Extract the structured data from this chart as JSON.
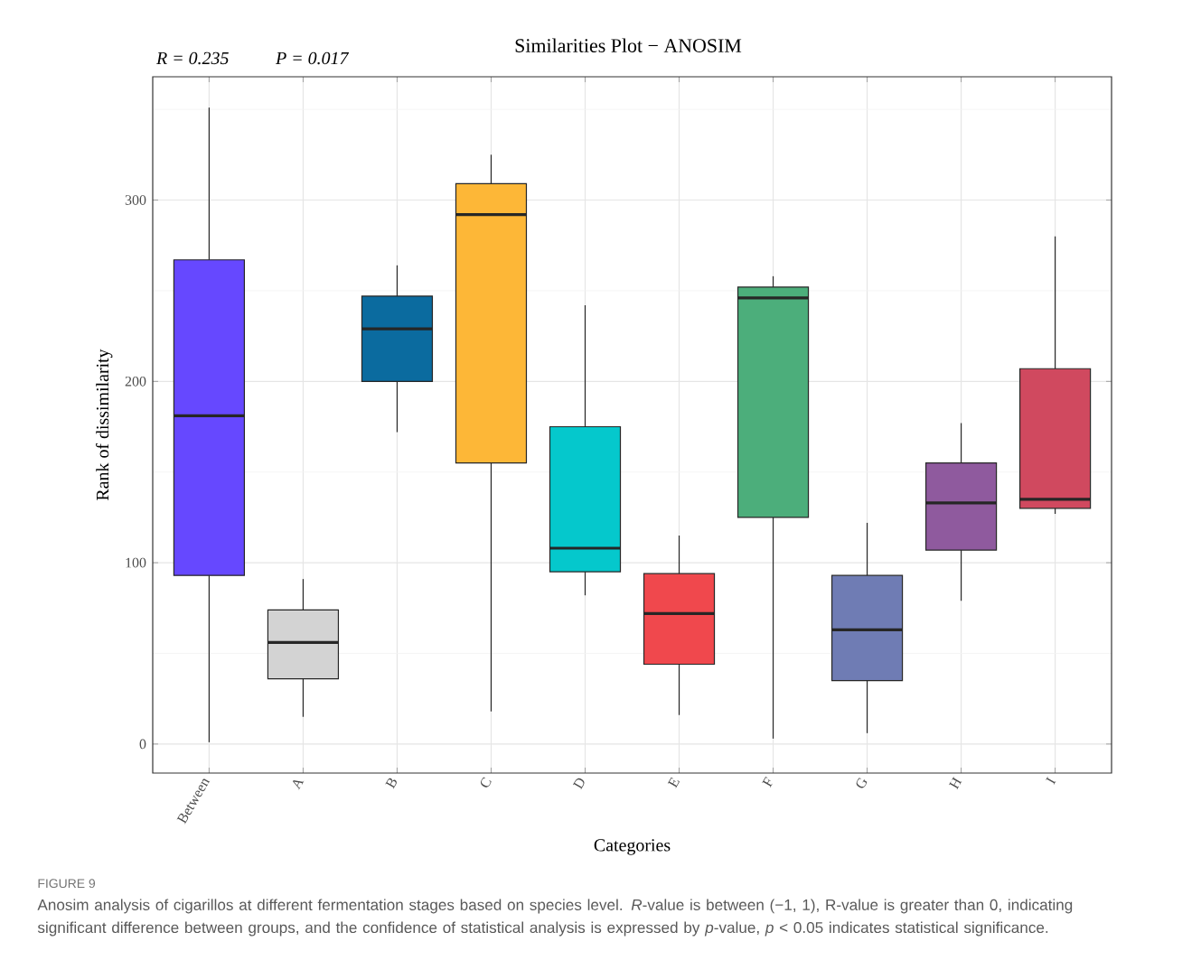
{
  "chart_data": {
    "type": "box",
    "title": "Similarities Plot − ANOSIM",
    "xlabel": "Categories",
    "ylabel": "Rank of dissimilarity",
    "categories": [
      "Between",
      "A",
      "B",
      "C",
      "D",
      "E",
      "F",
      "G",
      "H",
      "I"
    ],
    "colors": [
      "#6648ff",
      "#d3d3d3",
      "#0b6b9f",
      "#fdb737",
      "#05c8cc",
      "#f0484d",
      "#4cae7b",
      "#6f7cb4",
      "#8f5a9e",
      "#d0495f"
    ],
    "boxes": [
      {
        "low": 1,
        "q1": 93,
        "median": 181,
        "q3": 267,
        "high": 351
      },
      {
        "low": 15,
        "q1": 36,
        "median": 56,
        "q3": 74,
        "high": 91
      },
      {
        "low": 172,
        "q1": 200,
        "median": 229,
        "q3": 247,
        "high": 264
      },
      {
        "low": 18,
        "q1": 155,
        "median": 292,
        "q3": 309,
        "high": 325
      },
      {
        "low": 82,
        "q1": 95,
        "median": 108,
        "q3": 175,
        "high": 242
      },
      {
        "low": 16,
        "q1": 44,
        "median": 72,
        "q3": 94,
        "high": 115
      },
      {
        "low": 3,
        "q1": 125,
        "median": 246,
        "q3": 252,
        "high": 258
      },
      {
        "low": 6,
        "q1": 35,
        "median": 63,
        "q3": 93,
        "high": 122
      },
      {
        "low": 79,
        "q1": 107,
        "median": 133,
        "q3": 155,
        "high": 177
      },
      {
        "low": 127,
        "q1": 130,
        "median": 135,
        "q3": 207,
        "high": 280
      }
    ],
    "ylim": [
      -16,
      368
    ],
    "yticks": [
      0,
      100,
      200,
      300
    ],
    "grid": true,
    "annotations": [
      "R = 0.235",
      "P = 0.017",
      "FIGURE 9",
      "Anosim analysis of cigarillos at different fermentation stages based on species level. *R*-value is between (−1, 1), R-value is greater than 0, indicating significant difference between groups, and the confidence of statistical analysis is expressed by *p*-value, *p* < 0.05 indicates statistical significance."
    ]
  }
}
